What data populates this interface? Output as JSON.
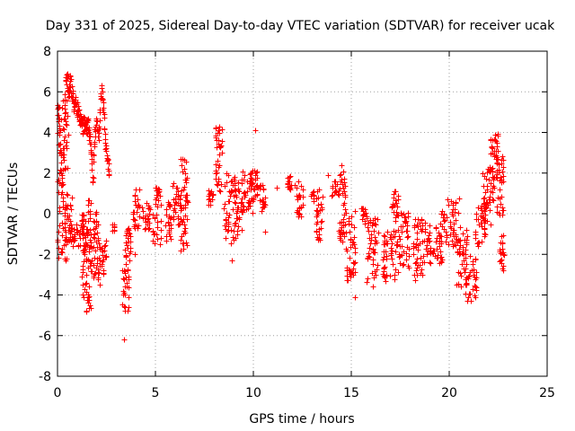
{
  "chart_data": {
    "type": "scatter",
    "title": "Day 331 of 2025, Sidereal Day-to-day VTEC variation (SDTVAR) for receiver ucak",
    "xlabel": "GPS time / hours",
    "ylabel": "SDTVAR / TECUs",
    "xlim": [
      0,
      25
    ],
    "ylim": [
      -8,
      8
    ],
    "xticks": [
      0,
      5,
      10,
      15,
      20,
      25
    ],
    "yticks": [
      -8,
      -6,
      -4,
      -2,
      0,
      2,
      4,
      6,
      8
    ],
    "xtick_labels": [
      "0",
      "5",
      "10",
      "15",
      "20",
      "25"
    ],
    "ytick_labels": [
      "-8",
      "-6",
      "-4",
      "-2",
      "0",
      "2",
      "4",
      "6",
      "8"
    ],
    "grid": true,
    "marker": "+",
    "series_color": "#ff0000",
    "series": [
      {
        "name": "SDTVAR",
        "trace": [
          [
            0.0,
            5.5
          ],
          [
            0.05,
            4.8
          ],
          [
            0.1,
            3.8
          ],
          [
            0.15,
            2.5
          ],
          [
            0.2,
            1.2
          ],
          [
            0.25,
            2.0
          ],
          [
            0.3,
            3.2
          ],
          [
            0.35,
            5.2
          ],
          [
            0.4,
            6.3
          ],
          [
            0.45,
            6.9
          ],
          [
            0.5,
            6.5
          ],
          [
            0.55,
            6.0
          ],
          [
            0.6,
            6.2
          ],
          [
            0.65,
            6.6
          ],
          [
            0.7,
            6.1
          ],
          [
            0.75,
            5.8
          ],
          [
            0.8,
            5.5
          ],
          [
            0.85,
            5.3
          ],
          [
            0.9,
            5.6
          ],
          [
            0.95,
            5.4
          ],
          [
            1.0,
            5.1
          ],
          [
            1.05,
            5.0
          ],
          [
            1.1,
            4.9
          ],
          [
            1.15,
            4.6
          ],
          [
            1.2,
            4.8
          ],
          [
            1.25,
            4.4
          ],
          [
            1.3,
            4.2
          ],
          [
            1.35,
            4.5
          ],
          [
            1.4,
            4.1
          ],
          [
            1.45,
            4.3
          ],
          [
            1.5,
            4.2
          ],
          [
            1.55,
            4.4
          ],
          [
            1.6,
            4.0
          ],
          [
            1.65,
            3.6
          ],
          [
            1.7,
            3.0
          ],
          [
            1.75,
            2.6
          ],
          [
            1.8,
            1.6
          ],
          [
            1.85,
            2.9
          ],
          [
            1.9,
            4.0
          ],
          [
            1.95,
            4.3
          ],
          [
            2.0,
            4.5
          ],
          [
            2.05,
            4.2
          ],
          [
            2.1,
            3.9
          ],
          [
            2.15,
            4.6
          ],
          [
            2.2,
            5.6
          ],
          [
            2.25,
            6.2
          ],
          [
            2.3,
            5.5
          ],
          [
            2.35,
            4.8
          ],
          [
            2.4,
            4.0
          ],
          [
            2.45,
            3.4
          ],
          [
            2.5,
            2.9
          ],
          [
            2.55,
            2.5
          ],
          [
            2.6,
            2.3
          ],
          [
            2.65,
            2.1
          ]
        ],
        "clusters": [
          {
            "x": 0.0,
            "width": 0.55,
            "low": -2.3,
            "high": 6.0
          },
          {
            "x": 0.35,
            "width": 0.4,
            "low": -1.5,
            "high": 0.8
          },
          {
            "x": 0.6,
            "width": 0.9,
            "low": -1.6,
            "high": -0.5
          },
          {
            "x": 1.2,
            "width": 0.25,
            "low": -4.2,
            "high": 0.0
          },
          {
            "x": 1.45,
            "width": 0.3,
            "low": -4.9,
            "high": 0.7
          },
          {
            "x": 1.8,
            "width": 0.3,
            "low": -3.5,
            "high": 0.4
          },
          {
            "x": 2.1,
            "width": 0.4,
            "low": -3.0,
            "high": -1.3
          },
          {
            "x": 2.8,
            "width": 0.1,
            "low": -0.9,
            "high": -0.5
          },
          {
            "x": 3.3,
            "width": 0.35,
            "low": -4.8,
            "high": -2.7
          },
          {
            "x": 3.45,
            "width": 0.3,
            "low": -2.6,
            "high": -0.7
          },
          {
            "x": 3.85,
            "width": 0.35,
            "low": -0.8,
            "high": 1.2
          },
          {
            "x": 4.3,
            "width": 0.45,
            "low": -0.8,
            "high": 0.6
          },
          {
            "x": 4.85,
            "width": 0.45,
            "low": -1.5,
            "high": 1.3
          },
          {
            "x": 5.5,
            "width": 0.3,
            "low": -1.4,
            "high": 0.6
          },
          {
            "x": 5.85,
            "width": 0.45,
            "low": -0.8,
            "high": 1.5
          },
          {
            "x": 6.3,
            "width": 0.35,
            "low": -1.9,
            "high": 2.8
          },
          {
            "x": 7.65,
            "width": 0.3,
            "low": 0.4,
            "high": 1.2
          },
          {
            "x": 8.05,
            "width": 0.35,
            "low": 1.0,
            "high": 4.5
          },
          {
            "x": 8.5,
            "width": 0.6,
            "low": -1.5,
            "high": 2.0
          },
          {
            "x": 9.0,
            "width": 0.45,
            "low": -1.0,
            "high": 1.8
          },
          {
            "x": 9.4,
            "width": 0.55,
            "low": 0.0,
            "high": 2.2
          },
          {
            "x": 9.85,
            "width": 0.4,
            "low": 0.5,
            "high": 2.3
          },
          {
            "x": 10.3,
            "width": 0.3,
            "low": 0.0,
            "high": 1.4
          },
          {
            "x": 11.7,
            "width": 0.25,
            "low": 1.2,
            "high": 1.9
          },
          {
            "x": 12.2,
            "width": 0.35,
            "low": -0.2,
            "high": 1.6
          },
          {
            "x": 12.95,
            "width": 0.15,
            "low": 0.6,
            "high": 1.1
          },
          {
            "x": 13.2,
            "width": 0.35,
            "low": -1.5,
            "high": 1.2
          },
          {
            "x": 14.0,
            "width": 0.3,
            "low": 0.8,
            "high": 1.6
          },
          {
            "x": 14.35,
            "width": 0.35,
            "low": -1.5,
            "high": 2.5
          },
          {
            "x": 14.7,
            "width": 0.5,
            "low": -3.3,
            "high": 0.2
          },
          {
            "x": 15.5,
            "width": 0.3,
            "low": -0.5,
            "high": 0.3
          },
          {
            "x": 15.8,
            "width": 0.6,
            "low": -3.8,
            "high": -0.2
          },
          {
            "x": 16.6,
            "width": 0.25,
            "low": -3.4,
            "high": -0.8
          },
          {
            "x": 16.95,
            "width": 0.45,
            "low": -3.3,
            "high": 1.2
          },
          {
            "x": 17.4,
            "width": 0.55,
            "low": -2.7,
            "high": 0.2
          },
          {
            "x": 18.15,
            "width": 0.5,
            "low": -3.3,
            "high": -0.2
          },
          {
            "x": 18.6,
            "width": 1.05,
            "low": -2.6,
            "high": -0.4
          },
          {
            "x": 19.4,
            "width": 1.1,
            "low": -1.6,
            "high": 0.8
          },
          {
            "x": 20.3,
            "width": 0.6,
            "low": -3.6,
            "high": -0.6
          },
          {
            "x": 20.8,
            "width": 0.6,
            "low": -4.3,
            "high": -2.0
          },
          {
            "x": 21.3,
            "width": 0.55,
            "low": -1.6,
            "high": 0.6
          },
          {
            "x": 21.7,
            "width": 0.55,
            "low": -0.6,
            "high": 2.2
          },
          {
            "x": 22.05,
            "width": 0.45,
            "low": 0.6,
            "high": 4.1
          },
          {
            "x": 22.4,
            "width": 0.35,
            "low": -0.2,
            "high": 3.4
          },
          {
            "x": 22.55,
            "width": 0.25,
            "low": -2.9,
            "high": -1.0
          }
        ],
        "isolated_points": [
          [
            3.4,
            -6.2
          ],
          [
            15.2,
            -4.1
          ],
          [
            10.1,
            4.1
          ],
          [
            8.9,
            -2.3
          ],
          [
            10.6,
            -0.9
          ],
          [
            3.95,
            -2.0
          ],
          [
            13.8,
            1.9
          ],
          [
            11.2,
            1.3
          ],
          [
            12.1,
            1.4
          ],
          [
            2.15,
            -3.5
          ]
        ]
      }
    ]
  }
}
